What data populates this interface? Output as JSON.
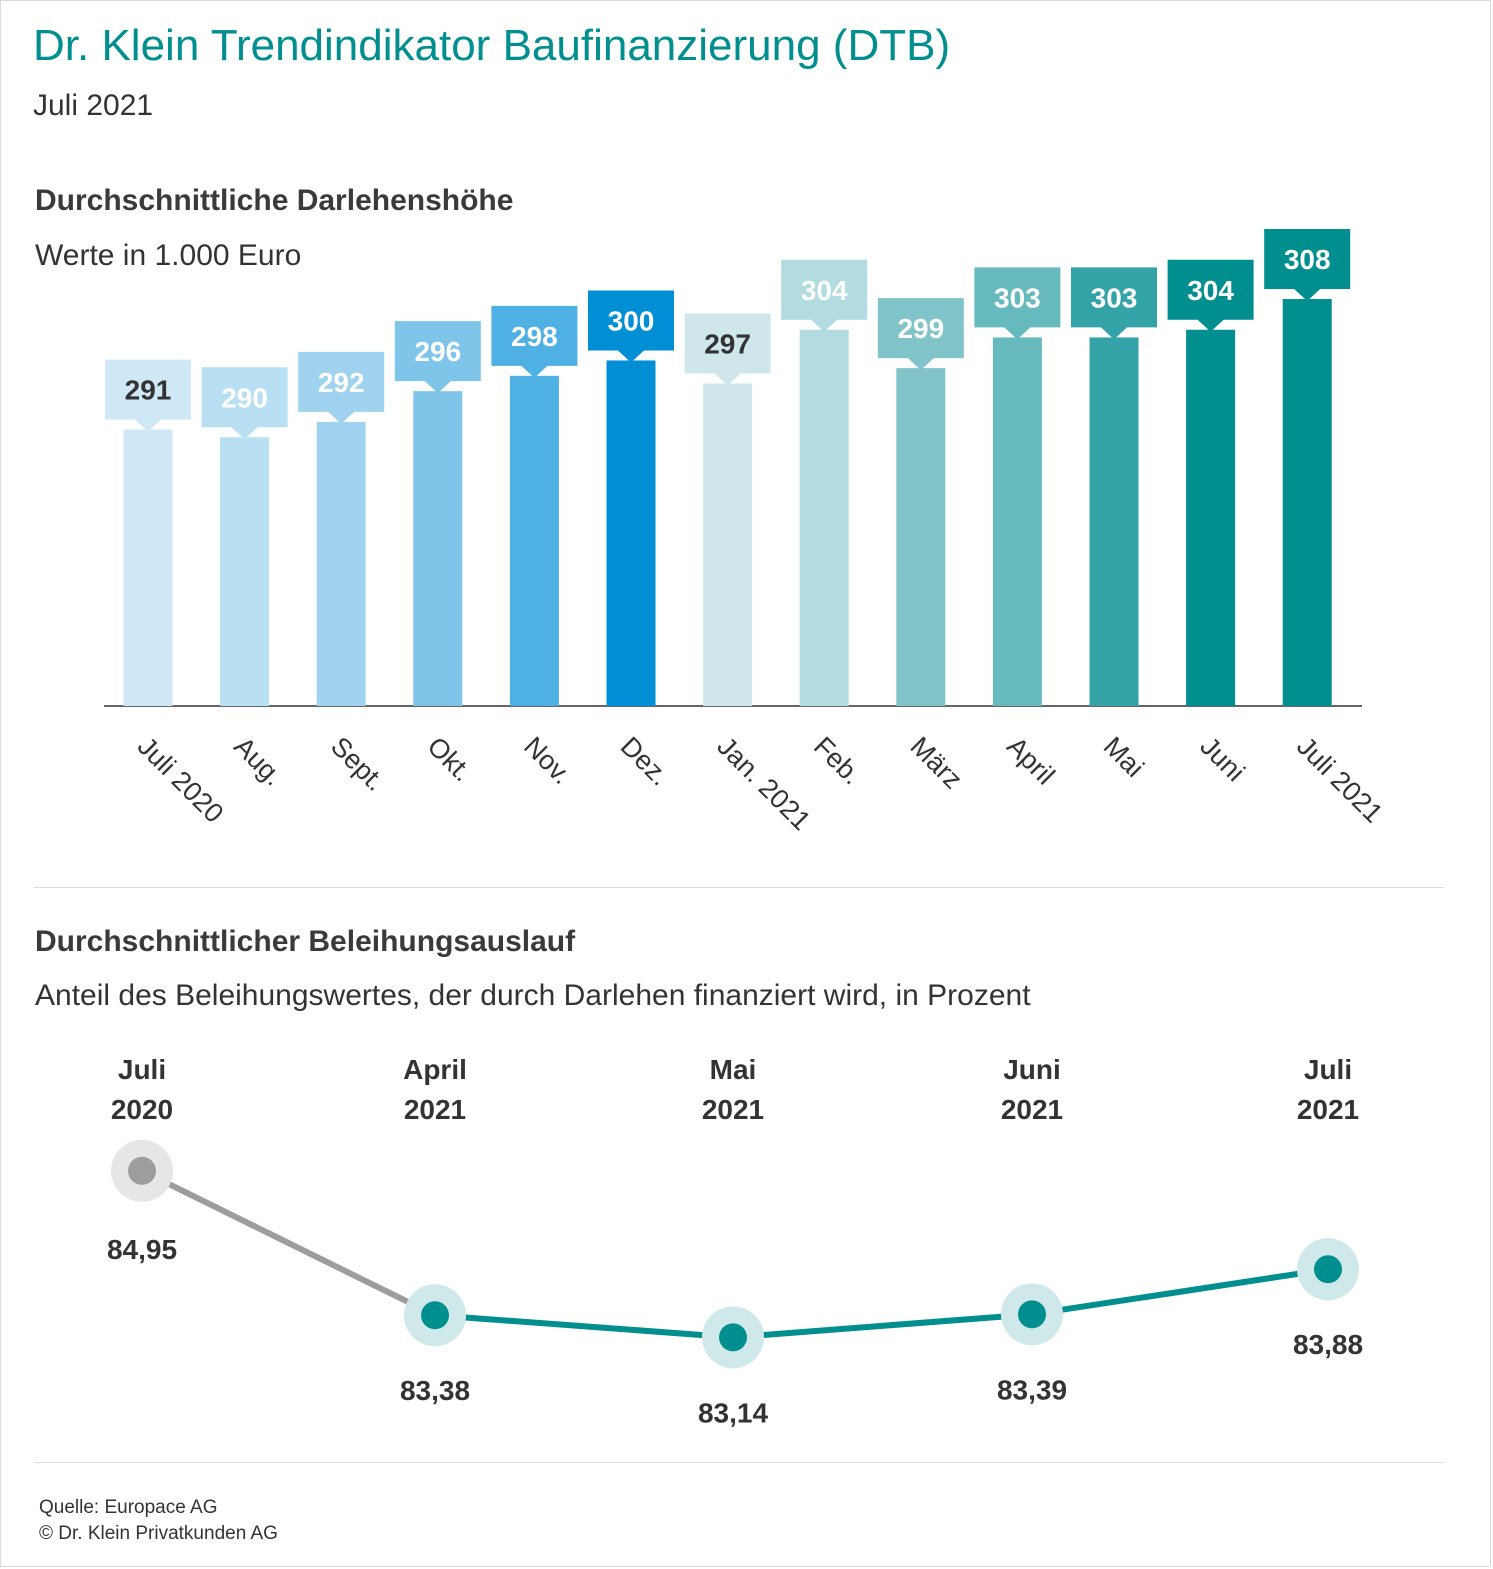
{
  "header": {
    "title": "Dr. Klein Trendindikator Baufinanzierung (DTB)",
    "subtitle": "Juli 2021"
  },
  "loan_section": {
    "heading": "Durchschnittliche Darlehenshöhe",
    "subheading": "Werte in 1.000 Euro"
  },
  "ltv_section": {
    "heading": "Durchschnittlicher Beleihungsauslauf",
    "subheading": "Anteil des Beleihungswertes, der durch Darlehen finanziert wird, in Prozent"
  },
  "footer": {
    "source": "Quelle: Europace AG",
    "copyright": "© Dr. Klein Privatkunden AG"
  },
  "chart_data": [
    {
      "type": "bar",
      "title": "Durchschnittliche Darlehenshöhe",
      "subtitle": "Werte in 1.000 Euro",
      "categories": [
        "Juli 2020",
        "Aug.",
        "Sept.",
        "Okt.",
        "Nov.",
        "Dez.",
        "Jan. 2021",
        "Feb.",
        "März",
        "April",
        "Mai",
        "Juni",
        "Juli 2021"
      ],
      "values": [
        291,
        290,
        292,
        296,
        298,
        300,
        297,
        304,
        299,
        303,
        303,
        304,
        308
      ],
      "labels": [
        "291",
        "290",
        "292",
        "296",
        "298",
        "300",
        "297",
        "304",
        "299",
        "303",
        "303",
        "304",
        "308"
      ],
      "colors": [
        "#cfe8f5",
        "#b9dff2",
        "#9fd3ef",
        "#7fc5ea",
        "#4fb1e3",
        "#008fd5",
        "#cfe7eb",
        "#b2dce0",
        "#80c3c8",
        "#66b9bd",
        "#33a3a7",
        "#008e8f",
        "#008e8f"
      ],
      "label_text_colors": [
        "#333333",
        "#ffffff",
        "#ffffff",
        "#ffffff",
        "#ffffff",
        "#ffffff",
        "#333333",
        "#ffffff",
        "#ffffff",
        "#ffffff",
        "#ffffff",
        "#ffffff",
        "#ffffff"
      ],
      "ylim": [
        255,
        311
      ],
      "grid": false,
      "legend": "none"
    },
    {
      "type": "line",
      "title": "Durchschnittlicher Beleihungsauslauf",
      "subtitle": "Anteil des Beleihungswertes, der durch Darlehen finanziert wird, in Prozent",
      "categories": [
        [
          "Juli",
          "2020"
        ],
        [
          "April",
          "2021"
        ],
        [
          "Mai",
          "2021"
        ],
        [
          "Juni",
          "2021"
        ],
        [
          "Juli",
          "2021"
        ]
      ],
      "values": [
        84.95,
        83.38,
        83.14,
        83.39,
        83.88
      ],
      "labels": [
        "84,95",
        "83,38",
        "83,14",
        "83,39",
        "83,88"
      ],
      "ylim": [
        82.85,
        85.6
      ],
      "colors": {
        "previous_year": "#9d9d9d",
        "current": "#008e8f",
        "halo_current": "#cfe9ea",
        "halo_previous": "#e6e6e6"
      },
      "grid": false,
      "legend": "none"
    }
  ]
}
